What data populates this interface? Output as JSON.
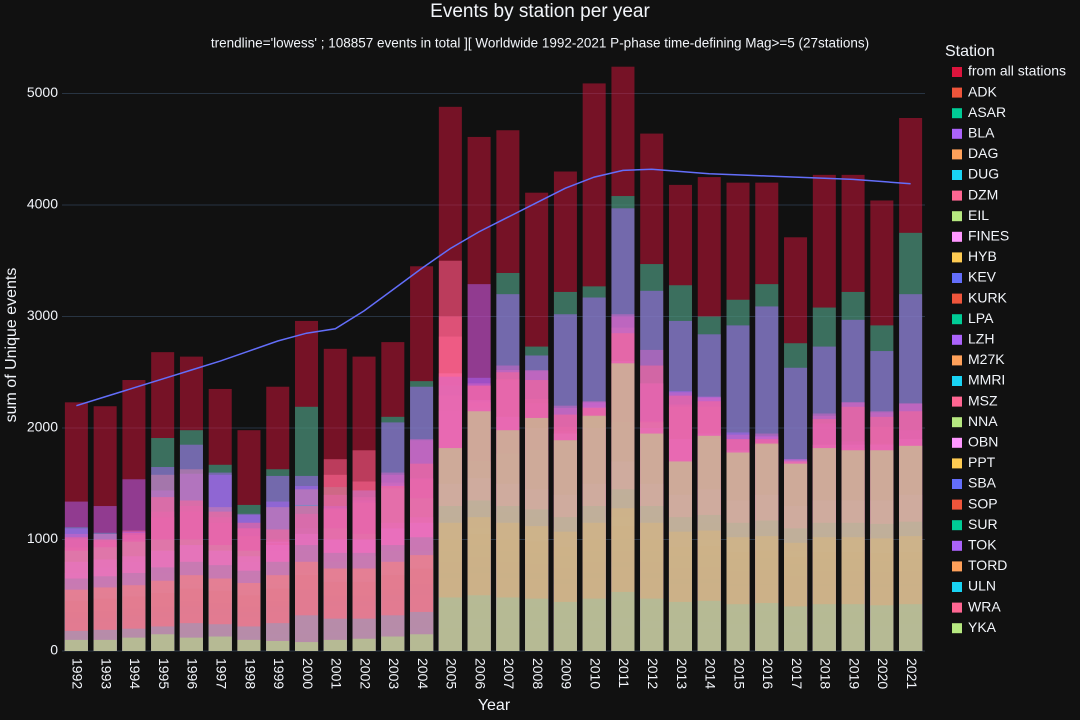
{
  "chart_data": {
    "type": "bar",
    "title": "Events by station per year",
    "subtitle": "trendline='lowess' ; 108857 events in total ][ Worldwide 1992-2021 P-phase time-defining Mag>=5 (27stations)",
    "x_label": "Year",
    "y_label": "sum of Unique events",
    "legend_title": "Station",
    "grid": true,
    "categories": [
      "1992",
      "1993",
      "1994",
      "1995",
      "1996",
      "1997",
      "1998",
      "1999",
      "2000",
      "2001",
      "2002",
      "2003",
      "2004",
      "2005",
      "2006",
      "2007",
      "2008",
      "2009",
      "2010",
      "2011",
      "2012",
      "2013",
      "2014",
      "2015",
      "2016",
      "2017",
      "2018",
      "2019",
      "2020",
      "2021"
    ],
    "ylim": [
      0,
      5300
    ],
    "yticks": [
      0,
      1000,
      2000,
      3000,
      4000,
      5000
    ],
    "series": [
      {
        "name": "from all stations",
        "color": "#dc143c",
        "values": [
          2230,
          2195,
          2430,
          2680,
          2640,
          2350,
          1980,
          2370,
          2960,
          2710,
          2640,
          2770,
          3450,
          4880,
          4610,
          4670,
          4110,
          4300,
          5090,
          5240,
          4640,
          4180,
          4250,
          4200,
          4200,
          3710,
          4270,
          4270,
          4040,
          4780
        ]
      },
      {
        "name": "ADK",
        "color": "#ef553b",
        "values": [
          50,
          50,
          60,
          80,
          80,
          70,
          60,
          70,
          80,
          90,
          100,
          100,
          120,
          150,
          160,
          150,
          170,
          180,
          200,
          220,
          200,
          180,
          190,
          170,
          180,
          160,
          170,
          170,
          160,
          170
        ]
      },
      {
        "name": "ASAR",
        "color": "#00cc96",
        "values": [
          1110,
          1060,
          1000,
          1910,
          1980,
          1670,
          1310,
          1630,
          2190,
          1470,
          1440,
          2100,
          2420,
          2380,
          2180,
          3390,
          2730,
          3220,
          3270,
          4080,
          3470,
          3280,
          3000,
          3150,
          3290,
          2760,
          3080,
          3220,
          2920,
          3750
        ]
      },
      {
        "name": "BLA",
        "color": "#ab63fa",
        "values": [
          1340,
          1300,
          1540,
          1440,
          1590,
          1600,
          1230,
          1340,
          1570,
          1400,
          1350,
          1490,
          1550,
          2150,
          2450,
          2430,
          2220,
          1970,
          2230,
          2580,
          2400,
          2330,
          2280,
          1960,
          1930,
          1720,
          2040,
          1880,
          1860,
          1980
        ]
      },
      {
        "name": "DAG",
        "color": "#ffa15a",
        "values": [
          930,
          1050,
          990,
          1580,
          1630,
          1290,
          1030,
          1290,
          1450,
          1270,
          1330,
          1510,
          1540,
          2290,
          2230,
          2440,
          2260,
          2010,
          2190,
          2900,
          2060,
          2190,
          2190,
          1790,
          1870,
          1710,
          1850,
          1820,
          2010,
          1850
        ]
      },
      {
        "name": "DUG",
        "color": "#19d3f3",
        "values": [
          400,
          420,
          430,
          450,
          500,
          480,
          400,
          450,
          600,
          500,
          500,
          550,
          600,
          800,
          850,
          800,
          780,
          700,
          700,
          800,
          700,
          650,
          600,
          600,
          600,
          550,
          600,
          600,
          600,
          600
        ]
      },
      {
        "name": "DZM",
        "color": "#ff6692",
        "values": [
          1050,
          1000,
          1080,
          1250,
          1300,
          1200,
          1100,
          1000,
          1200,
          1280,
          1380,
          1600,
          1900,
          3000,
          2380,
          2560,
          2510,
          2200,
          2240,
          3000,
          2400,
          2210,
          2280,
          1900,
          1950,
          1720,
          2130,
          2230,
          2140,
          2220
        ]
      },
      {
        "name": "EIL",
        "color": "#b6e880",
        "values": [
          300,
          300,
          280,
          350,
          600,
          620,
          700,
          900,
          1000,
          1100,
          1050,
          1460,
          1370,
          1800,
          1700,
          1770,
          1800,
          1950,
          2100,
          2050,
          2050,
          1700,
          1900,
          1800,
          1850,
          1700,
          1800,
          1800,
          1800,
          1840
        ]
      },
      {
        "name": "FINES",
        "color": "#ff97ff",
        "values": [
          700,
          750,
          800,
          900,
          950,
          900,
          800,
          980,
          1100,
          1000,
          1000,
          1150,
          1200,
          2490,
          2250,
          2100,
          2000,
          1950,
          2000,
          2600,
          2000,
          1900,
          1950,
          1800,
          1850,
          1700,
          1850,
          1850,
          1850,
          1900
        ]
      },
      {
        "name": "HYB",
        "color": "#fecb52",
        "values": [
          600,
          600,
          650,
          700,
          800,
          750,
          700,
          800,
          900,
          850,
          850,
          900,
          950,
          1200,
          1300,
          1250,
          1200,
          1100,
          1200,
          1400,
          1200,
          1100,
          1150,
          1050,
          1100,
          1000,
          1050,
          1050,
          1050,
          1100
        ]
      },
      {
        "name": "KEV",
        "color": "#636efa",
        "values": [
          300,
          300,
          320,
          350,
          400,
          380,
          350,
          400,
          500,
          450,
          450,
          500,
          550,
          700,
          750,
          700,
          700,
          650,
          700,
          800,
          700,
          650,
          650,
          600,
          600,
          550,
          600,
          600,
          600,
          600
        ]
      },
      {
        "name": "KURK",
        "color": "#ef553b",
        "values": [
          200,
          220,
          230,
          250,
          280,
          270,
          250,
          280,
          350,
          330,
          330,
          350,
          400,
          500,
          520,
          500,
          480,
          450,
          500,
          550,
          500,
          450,
          460,
          430,
          440,
          400,
          430,
          430,
          420,
          430
        ]
      },
      {
        "name": "LPA",
        "color": "#00cc96",
        "values": [
          500,
          520,
          540,
          560,
          600,
          580,
          550,
          600,
          1310,
          650,
          650,
          700,
          750,
          900,
          950,
          900,
          880,
          850,
          900,
          1000,
          900,
          850,
          860,
          820,
          830,
          780,
          820,
          820,
          810,
          820
        ]
      },
      {
        "name": "LZH",
        "color": "#ab63fa",
        "values": [
          250,
          260,
          270,
          300,
          330,
          320,
          300,
          350,
          450,
          400,
          400,
          450,
          500,
          650,
          700,
          650,
          640,
          600,
          650,
          750,
          650,
          600,
          610,
          580,
          590,
          550,
          580,
          580,
          570,
          580
        ]
      },
      {
        "name": "M27K",
        "color": "#ffa15a",
        "values": [
          150,
          160,
          170,
          200,
          220,
          210,
          200,
          220,
          280,
          260,
          260,
          280,
          300,
          400,
          420,
          400,
          390,
          370,
          400,
          450,
          400,
          370,
          380,
          350,
          360,
          330,
          350,
          350,
          340,
          350
        ]
      },
      {
        "name": "MMRI",
        "color": "#19d3f3",
        "values": [
          100,
          110,
          120,
          130,
          150,
          140,
          130,
          150,
          640,
          170,
          170,
          190,
          200,
          280,
          290,
          280,
          270,
          250,
          270,
          300,
          270,
          250,
          260,
          240,
          250,
          230,
          240,
          240,
          230,
          240
        ]
      },
      {
        "name": "MSZ",
        "color": "#ff6692",
        "values": [
          1000,
          980,
          1040,
          1200,
          1250,
          1150,
          1100,
          970,
          1230,
          1720,
          1800,
          1580,
          1890,
          3500,
          2400,
          2520,
          2520,
          2180,
          2230,
          3020,
          2700,
          2320,
          2270,
          1940,
          1920,
          1700,
          2110,
          2230,
          2150,
          2220
        ]
      },
      {
        "name": "NNA",
        "color": "#b6e880",
        "values": [
          900,
          930,
          980,
          1000,
          1000,
          950,
          900,
          800,
          700,
          800,
          850,
          900,
          900,
          1000,
          1100,
          1000,
          1100,
          900,
          1000,
          1200,
          1000,
          900,
          1000,
          1000,
          1000,
          900,
          1000,
          1000,
          1000,
          1000
        ]
      },
      {
        "name": "OBN",
        "color": "#ff97ff",
        "values": [
          800,
          820,
          850,
          900,
          950,
          900,
          850,
          950,
          1050,
          1000,
          1000,
          1100,
          1150,
          1500,
          1550,
          1500,
          1450,
          1400,
          1500,
          1700,
          1500,
          1400,
          1450,
          1350,
          1400,
          1300,
          1350,
          1350,
          1350,
          1400
        ]
      },
      {
        "name": "PPT",
        "color": "#fecb52",
        "values": [
          80,
          90,
          100,
          110,
          120,
          110,
          100,
          120,
          150,
          140,
          140,
          150,
          160,
          200,
          210,
          200,
          200,
          190,
          200,
          220,
          200,
          190,
          190,
          180,
          180,
          170,
          180,
          180,
          180,
          180
        ]
      },
      {
        "name": "SBA",
        "color": "#636efa",
        "values": [
          350,
          360,
          380,
          400,
          450,
          430,
          400,
          450,
          550,
          500,
          500,
          550,
          600,
          800,
          850,
          800,
          780,
          750,
          800,
          900,
          800,
          750,
          760,
          720,
          730,
          680,
          720,
          720,
          710,
          720
        ]
      },
      {
        "name": "SOP",
        "color": "#ef553b",
        "values": [
          450,
          470,
          490,
          520,
          560,
          540,
          500,
          560,
          680,
          620,
          620,
          680,
          740,
          1000,
          1050,
          1000,
          980,
          930,
          1000,
          1120,
          1000,
          930,
          940,
          890,
          900,
          840,
          890,
          890,
          880,
          890
        ]
      },
      {
        "name": "SUR",
        "color": "#00cc96",
        "values": [
          650,
          670,
          700,
          750,
          800,
          770,
          720,
          800,
          950,
          880,
          880,
          950,
          1020,
          1300,
          1350,
          1300,
          1270,
          1200,
          1300,
          1450,
          1300,
          1200,
          1220,
          1150,
          1170,
          1100,
          1150,
          1150,
          1140,
          1160
        ]
      },
      {
        "name": "TOK",
        "color": "#ab63fa",
        "values": [
          1100,
          1050,
          1070,
          1650,
          1850,
          1580,
          1220,
          1570,
          1480,
          1300,
          1440,
          2050,
          2370,
          2460,
          3290,
          3200,
          2650,
          3020,
          3170,
          3970,
          3230,
          2960,
          2840,
          2920,
          3090,
          2540,
          2730,
          2970,
          2690,
          3200
        ]
      },
      {
        "name": "TORD",
        "color": "#ffa15a",
        "values": [
          550,
          570,
          590,
          630,
          680,
          650,
          610,
          680,
          800,
          740,
          740,
          800,
          860,
          1150,
          1200,
          1150,
          1120,
          1070,
          1150,
          1280,
          1150,
          1070,
          1080,
          1020,
          1030,
          970,
          1020,
          1020,
          1010,
          1030
        ]
      },
      {
        "name": "ULN",
        "color": "#19d3f3",
        "values": [
          180,
          190,
          200,
          220,
          250,
          240,
          220,
          250,
          320,
          290,
          290,
          320,
          350,
          480,
          500,
          480,
          470,
          440,
          470,
          530,
          470,
          440,
          450,
          420,
          430,
          400,
          420,
          420,
          410,
          420
        ]
      },
      {
        "name": "WRA",
        "color": "#ff6692",
        "values": [
          1020,
          1000,
          1060,
          1380,
          1350,
          1250,
          1150,
          1090,
          1300,
          1580,
          1520,
          1480,
          1680,
          2820,
          2380,
          2500,
          2430,
          2120,
          2180,
          2850,
          2560,
          2290,
          2240,
          1900,
          1900,
          1700,
          2080,
          2190,
          2100,
          2150
        ]
      },
      {
        "name": "YKA",
        "color": "#b6e880",
        "values": [
          100,
          100,
          120,
          150,
          120,
          130,
          100,
          90,
          80,
          100,
          110,
          130,
          150,
          1820,
          2150,
          1980,
          2090,
          1890,
          2110,
          2580,
          1950,
          1700,
          1930,
          1780,
          1860,
          1680,
          1820,
          1800,
          1800,
          1840
        ]
      }
    ],
    "trendline": {
      "color": "#636efa",
      "values": [
        2200,
        2280,
        2360,
        2440,
        2520,
        2600,
        2690,
        2780,
        2850,
        2890,
        3050,
        3240,
        3430,
        3610,
        3760,
        3890,
        4020,
        4150,
        4250,
        4310,
        4320,
        4300,
        4280,
        4270,
        4260,
        4250,
        4240,
        4230,
        4210,
        4190
      ]
    }
  }
}
